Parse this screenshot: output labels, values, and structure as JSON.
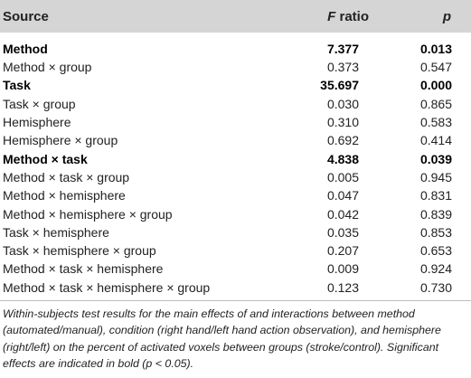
{
  "table": {
    "headers": {
      "source": "Source",
      "f_ratio_italic": "F",
      "f_ratio_rest": " ratio",
      "p": "p"
    },
    "rows": [
      {
        "source": "Method",
        "f": "7.377",
        "p": "0.013",
        "bold": true
      },
      {
        "source": "Method × group",
        "f": "0.373",
        "p": "0.547",
        "bold": false
      },
      {
        "source": "Task",
        "f": "35.697",
        "p": "0.000",
        "bold": true
      },
      {
        "source": "Task × group",
        "f": "0.030",
        "p": "0.865",
        "bold": false
      },
      {
        "source": "Hemisphere",
        "f": "0.310",
        "p": "0.583",
        "bold": false
      },
      {
        "source": "Hemisphere × group",
        "f": "0.692",
        "p": "0.414",
        "bold": false
      },
      {
        "source": "Method × task",
        "f": "4.838",
        "p": "0.039",
        "bold": true
      },
      {
        "source": "Method × task × group",
        "f": "0.005",
        "p": "0.945",
        "bold": false
      },
      {
        "source": "Method × hemisphere",
        "f": "0.047",
        "p": "0.831",
        "bold": false
      },
      {
        "source": "Method × hemisphere × group",
        "f": "0.042",
        "p": "0.839",
        "bold": false
      },
      {
        "source": "Task × hemisphere",
        "f": "0.035",
        "p": "0.853",
        "bold": false
      },
      {
        "source": "Task × hemisphere × group",
        "f": "0.207",
        "p": "0.653",
        "bold": false
      },
      {
        "source": "Method × task × hemisphere",
        "f": "0.009",
        "p": "0.924",
        "bold": false
      },
      {
        "source": "Method × task × hemisphere × group",
        "f": "0.123",
        "p": "0.730",
        "bold": false
      }
    ]
  },
  "caption": "Within-subjects test results for the main effects of and interactions between method (automated/manual), condition (right hand/left hand action observation), and hemisphere (right/left) on the percent of activated voxels between groups (stroke/control). Significant effects are indicated in bold (p < 0.05).",
  "colors": {
    "header_bg": "#d5d5d5",
    "rule": "#bdbdbd"
  }
}
